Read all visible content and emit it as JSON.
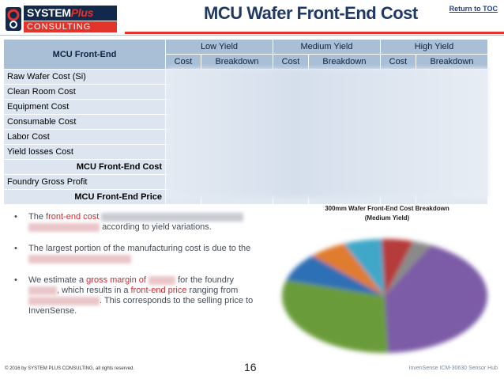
{
  "header": {
    "logo_top": "SYSTEM",
    "logo_plus": "Plus",
    "logo_bottom": "CONSULTING",
    "title": "MCU Wafer Front-End Cost",
    "return_link": "Return to TOC"
  },
  "table": {
    "corner": "MCU Front-End",
    "groups": [
      "Low Yield",
      "Medium Yield",
      "High Yield"
    ],
    "sub_headers": [
      "Cost",
      "Breakdown",
      "Cost",
      "Breakdown",
      "Cost",
      "Breakdown"
    ],
    "rows": [
      {
        "label": "Raw Wafer Cost (Si)",
        "bold": false
      },
      {
        "label": "Clean Room Cost",
        "bold": false
      },
      {
        "label": "Equipment Cost",
        "bold": false
      },
      {
        "label": "Consumable Cost",
        "bold": false
      },
      {
        "label": "Labor Cost",
        "bold": false
      },
      {
        "label": "Yield losses Cost",
        "bold": false
      },
      {
        "label": "MCU Front-End Cost",
        "bold": true
      },
      {
        "label": "Foundry Gross Profit",
        "bold": false
      },
      {
        "label": "MCU Front-End Price",
        "bold": true
      }
    ]
  },
  "bullets": {
    "b1_prefix": "The",
    "b1_red": "front-end cost",
    "b1_tail": "according to yield variations.",
    "b2_text": "The largest portion of the manufacturing cost is due to the",
    "b3_prefix": "We estimate a",
    "b3_red1": "gross margin of",
    "b3_mid1": "for the foundry",
    "b3_mid2": ", which results in a",
    "b3_red2": "front-end price",
    "b3_mid3": "ranging from",
    "b3_mid4": ". This corresponds to the selling price to InvenSense."
  },
  "pie": {
    "title_line1": "300mm Wafer Front-End Cost Breakdown",
    "title_line2": "(Medium Yield)",
    "colors": [
      "#7b5ba6",
      "#6a9b3a",
      "#2f6fb5",
      "#e07b2e",
      "#3fa7c9",
      "#b63a3a",
      "#8a8a8a"
    ]
  },
  "footer": {
    "copyright": "© 2016 by SYSTEM PLUS CONSULTING, all rights reserved.",
    "page_number": "16",
    "product": "InvenSense ICM-30630 Sensor Hub"
  }
}
